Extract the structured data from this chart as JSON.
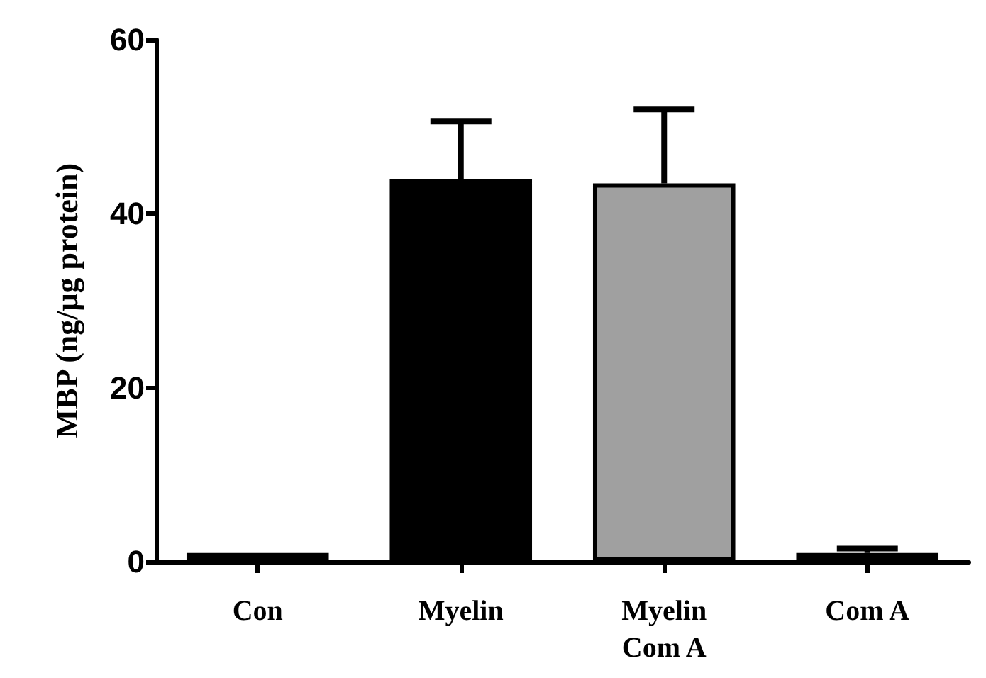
{
  "chart_data": {
    "type": "bar",
    "ylabel": "MBP (ng/μg protein)",
    "categories": [
      "Con",
      "Myelin",
      "Myelin\nCom A",
      "Com A"
    ],
    "values": [
      1,
      44,
      43.5,
      1
    ],
    "colors": [
      "#ffffff",
      "#000000",
      "#a0a0a0",
      "#ffffff"
    ],
    "errors": [
      null,
      [
        44,
        50.6
      ],
      [
        43.5,
        52
      ],
      [
        1,
        1.5
      ]
    ],
    "ylim": [
      0,
      60
    ],
    "yticks": [
      0,
      20,
      40,
      60
    ],
    "grid": false
  }
}
